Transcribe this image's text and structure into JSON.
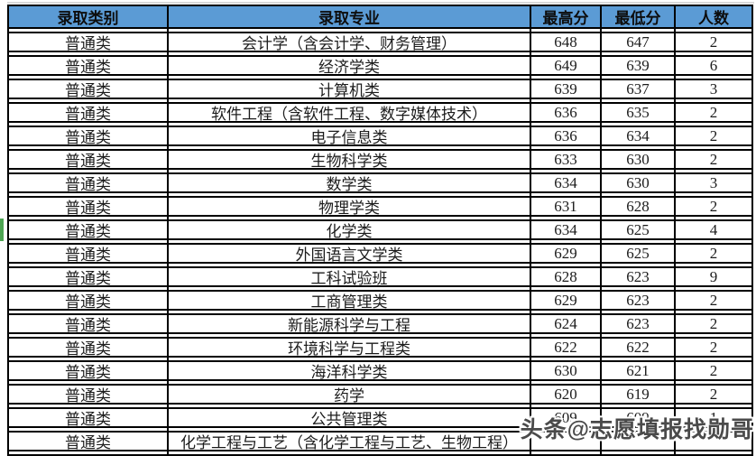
{
  "table": {
    "headers": [
      "录取类别",
      "录取专业",
      "最高分",
      "最低分",
      "人数"
    ],
    "rows": [
      {
        "category": "普通类",
        "major": "会计学（含会计学、财务管理）",
        "max": "648",
        "min": "647",
        "count": "2"
      },
      {
        "category": "普通类",
        "major": "经济学类",
        "max": "649",
        "min": "639",
        "count": "6"
      },
      {
        "category": "普通类",
        "major": "计算机类",
        "max": "639",
        "min": "637",
        "count": "3"
      },
      {
        "category": "普通类",
        "major": "软件工程（含软件工程、数字媒体技术）",
        "max": "636",
        "min": "635",
        "count": "2"
      },
      {
        "category": "普通类",
        "major": "电子信息类",
        "max": "636",
        "min": "634",
        "count": "2"
      },
      {
        "category": "普通类",
        "major": "生物科学类",
        "max": "633",
        "min": "630",
        "count": "2"
      },
      {
        "category": "普通类",
        "major": "数学类",
        "max": "634",
        "min": "630",
        "count": "3"
      },
      {
        "category": "普通类",
        "major": "物理学类",
        "max": "631",
        "min": "628",
        "count": "2"
      },
      {
        "category": "普通类",
        "major": "化学类",
        "max": "634",
        "min": "625",
        "count": "4"
      },
      {
        "category": "普通类",
        "major": "外国语言文学类",
        "max": "629",
        "min": "625",
        "count": "2"
      },
      {
        "category": "普通类",
        "major": "工科试验班",
        "max": "628",
        "min": "623",
        "count": "9"
      },
      {
        "category": "普通类",
        "major": "工商管理类",
        "max": "629",
        "min": "623",
        "count": "2"
      },
      {
        "category": "普通类",
        "major": "新能源科学与工程",
        "max": "624",
        "min": "623",
        "count": "2"
      },
      {
        "category": "普通类",
        "major": "环境科学与工程类",
        "max": "622",
        "min": "622",
        "count": "2"
      },
      {
        "category": "普通类",
        "major": "海洋科学类",
        "max": "630",
        "min": "621",
        "count": "2"
      },
      {
        "category": "普通类",
        "major": "药学",
        "max": "620",
        "min": "619",
        "count": "2"
      },
      {
        "category": "普通类",
        "major": "公共管理类",
        "max": "609",
        "min": "609",
        "count": "1"
      },
      {
        "category": "普通类",
        "major": "化学工程与工艺（含化学工程与工艺、生物工程）",
        "max": "",
        "min": "",
        "count": ""
      }
    ]
  },
  "watermark": {
    "text": "头条@志愿填报找勋哥"
  },
  "colors": {
    "header_bg": "#5B9BD5",
    "grid_border": "#000000",
    "selection_green": "#4EA553",
    "watermark_text": "#4A4A4A"
  }
}
